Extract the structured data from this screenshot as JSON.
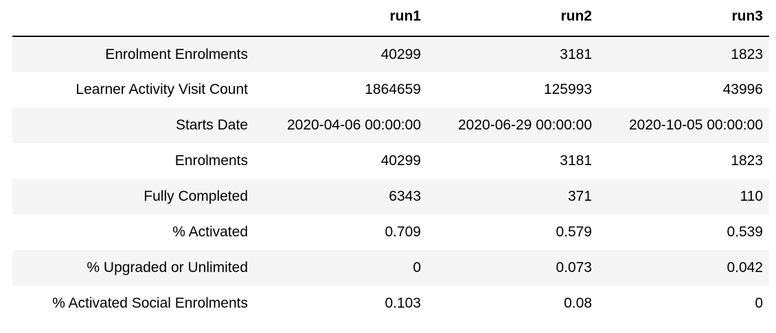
{
  "table": {
    "columns": [
      "",
      "run1",
      "run2",
      "run3"
    ],
    "rows": [
      {
        "label": "Enrolment Enrolments",
        "values": [
          "40299",
          "3181",
          "1823"
        ]
      },
      {
        "label": "Learner Activity Visit Count",
        "values": [
          "1864659",
          "125993",
          "43996"
        ]
      },
      {
        "label": "Starts Date",
        "values": [
          "2020-04-06 00:00:00",
          "2020-06-29 00:00:00",
          "2020-10-05 00:00:00"
        ]
      },
      {
        "label": "Enrolments",
        "values": [
          "40299",
          "3181",
          "1823"
        ]
      },
      {
        "label": "Fully Completed",
        "values": [
          "6343",
          "371",
          "110"
        ]
      },
      {
        "label": "% Activated",
        "values": [
          "0.709",
          "0.579",
          "0.539"
        ]
      },
      {
        "label": "% Upgraded or Unlimited",
        "values": [
          "0",
          "0.073",
          "0.042"
        ]
      },
      {
        "label": "% Activated Social Enrolments",
        "values": [
          "0.103",
          "0.08",
          "0"
        ]
      }
    ]
  }
}
